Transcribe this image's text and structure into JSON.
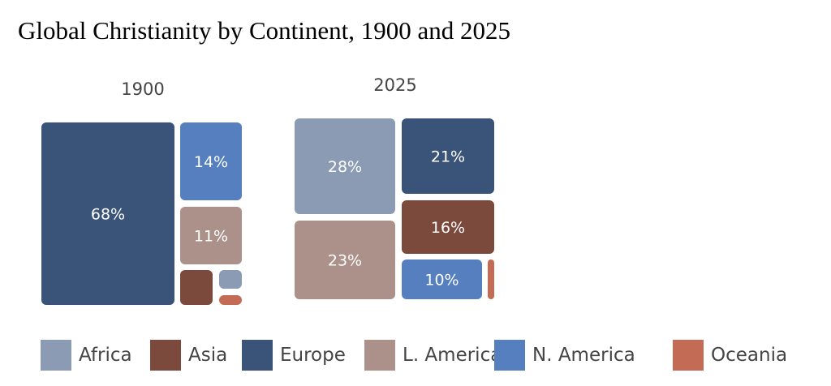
{
  "chart_data": {
    "type": "treemap",
    "title": "Global Christianity by Continent, 1900 and 2025",
    "colors": {
      "Africa": "#8a9bb3",
      "Asia": "#7b4a3c",
      "Europe": "#3a5378",
      "L. America": "#ab918a",
      "N. America": "#557fbe",
      "Oceania": "#c46b55"
    },
    "legend": [
      "Africa",
      "Asia",
      "Europe",
      "L. America",
      "N. America",
      "Oceania"
    ],
    "legend_position": "bottom",
    "panels": [
      {
        "year": "1900",
        "items": [
          {
            "region": "Europe",
            "value": 68,
            "label": "68%"
          },
          {
            "region": "N. America",
            "value": 14,
            "label": "14%"
          },
          {
            "region": "L. America",
            "value": 11,
            "label": "11%"
          },
          {
            "region": "Asia",
            "value": 4,
            "label": ""
          },
          {
            "region": "Africa",
            "value": 2,
            "label": ""
          },
          {
            "region": "Oceania",
            "value": 1,
            "label": ""
          }
        ]
      },
      {
        "year": "2025",
        "items": [
          {
            "region": "Africa",
            "value": 28,
            "label": "28%"
          },
          {
            "region": "Europe",
            "value": 21,
            "label": "21%"
          },
          {
            "region": "Asia",
            "value": 16,
            "label": "16%"
          },
          {
            "region": "L. America",
            "value": 23,
            "label": "23%"
          },
          {
            "region": "N. America",
            "value": 10,
            "label": "10%"
          },
          {
            "region": "Oceania",
            "value": 1,
            "label": ""
          }
        ]
      }
    ]
  }
}
